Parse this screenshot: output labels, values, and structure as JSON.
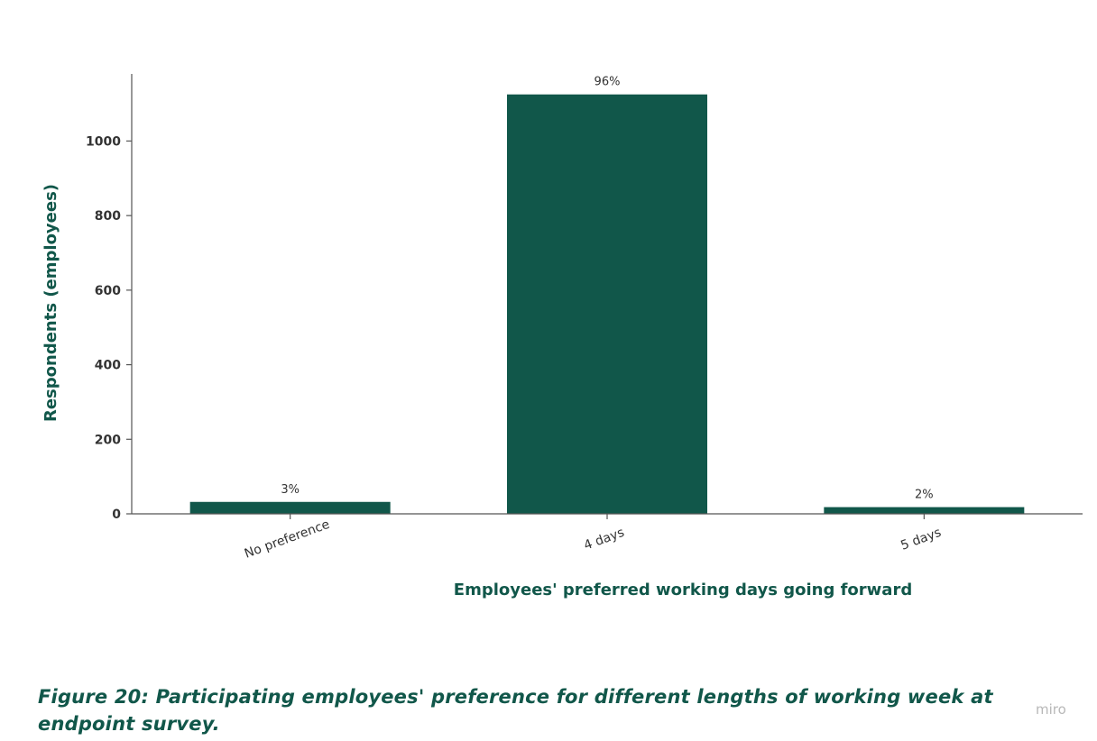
{
  "chart_data": {
    "type": "bar",
    "categories": [
      "No preference",
      "4 days",
      "5 days"
    ],
    "values": [
      32,
      1125,
      18
    ],
    "data_labels": [
      "3%",
      "96%",
      "2%"
    ],
    "title": "",
    "xlabel": "Employees' preferred working days going forward",
    "ylabel": "Respondents (employees)",
    "yticks": [
      0,
      200,
      400,
      600,
      800,
      1000
    ],
    "ylim": [
      0,
      1180
    ],
    "grid": false,
    "bar_color": "#11574a",
    "label_color": "#11574a"
  },
  "caption": "Figure 20: Participating employees' preference for different lengths of working week at endpoint survey.",
  "watermark": "miro"
}
